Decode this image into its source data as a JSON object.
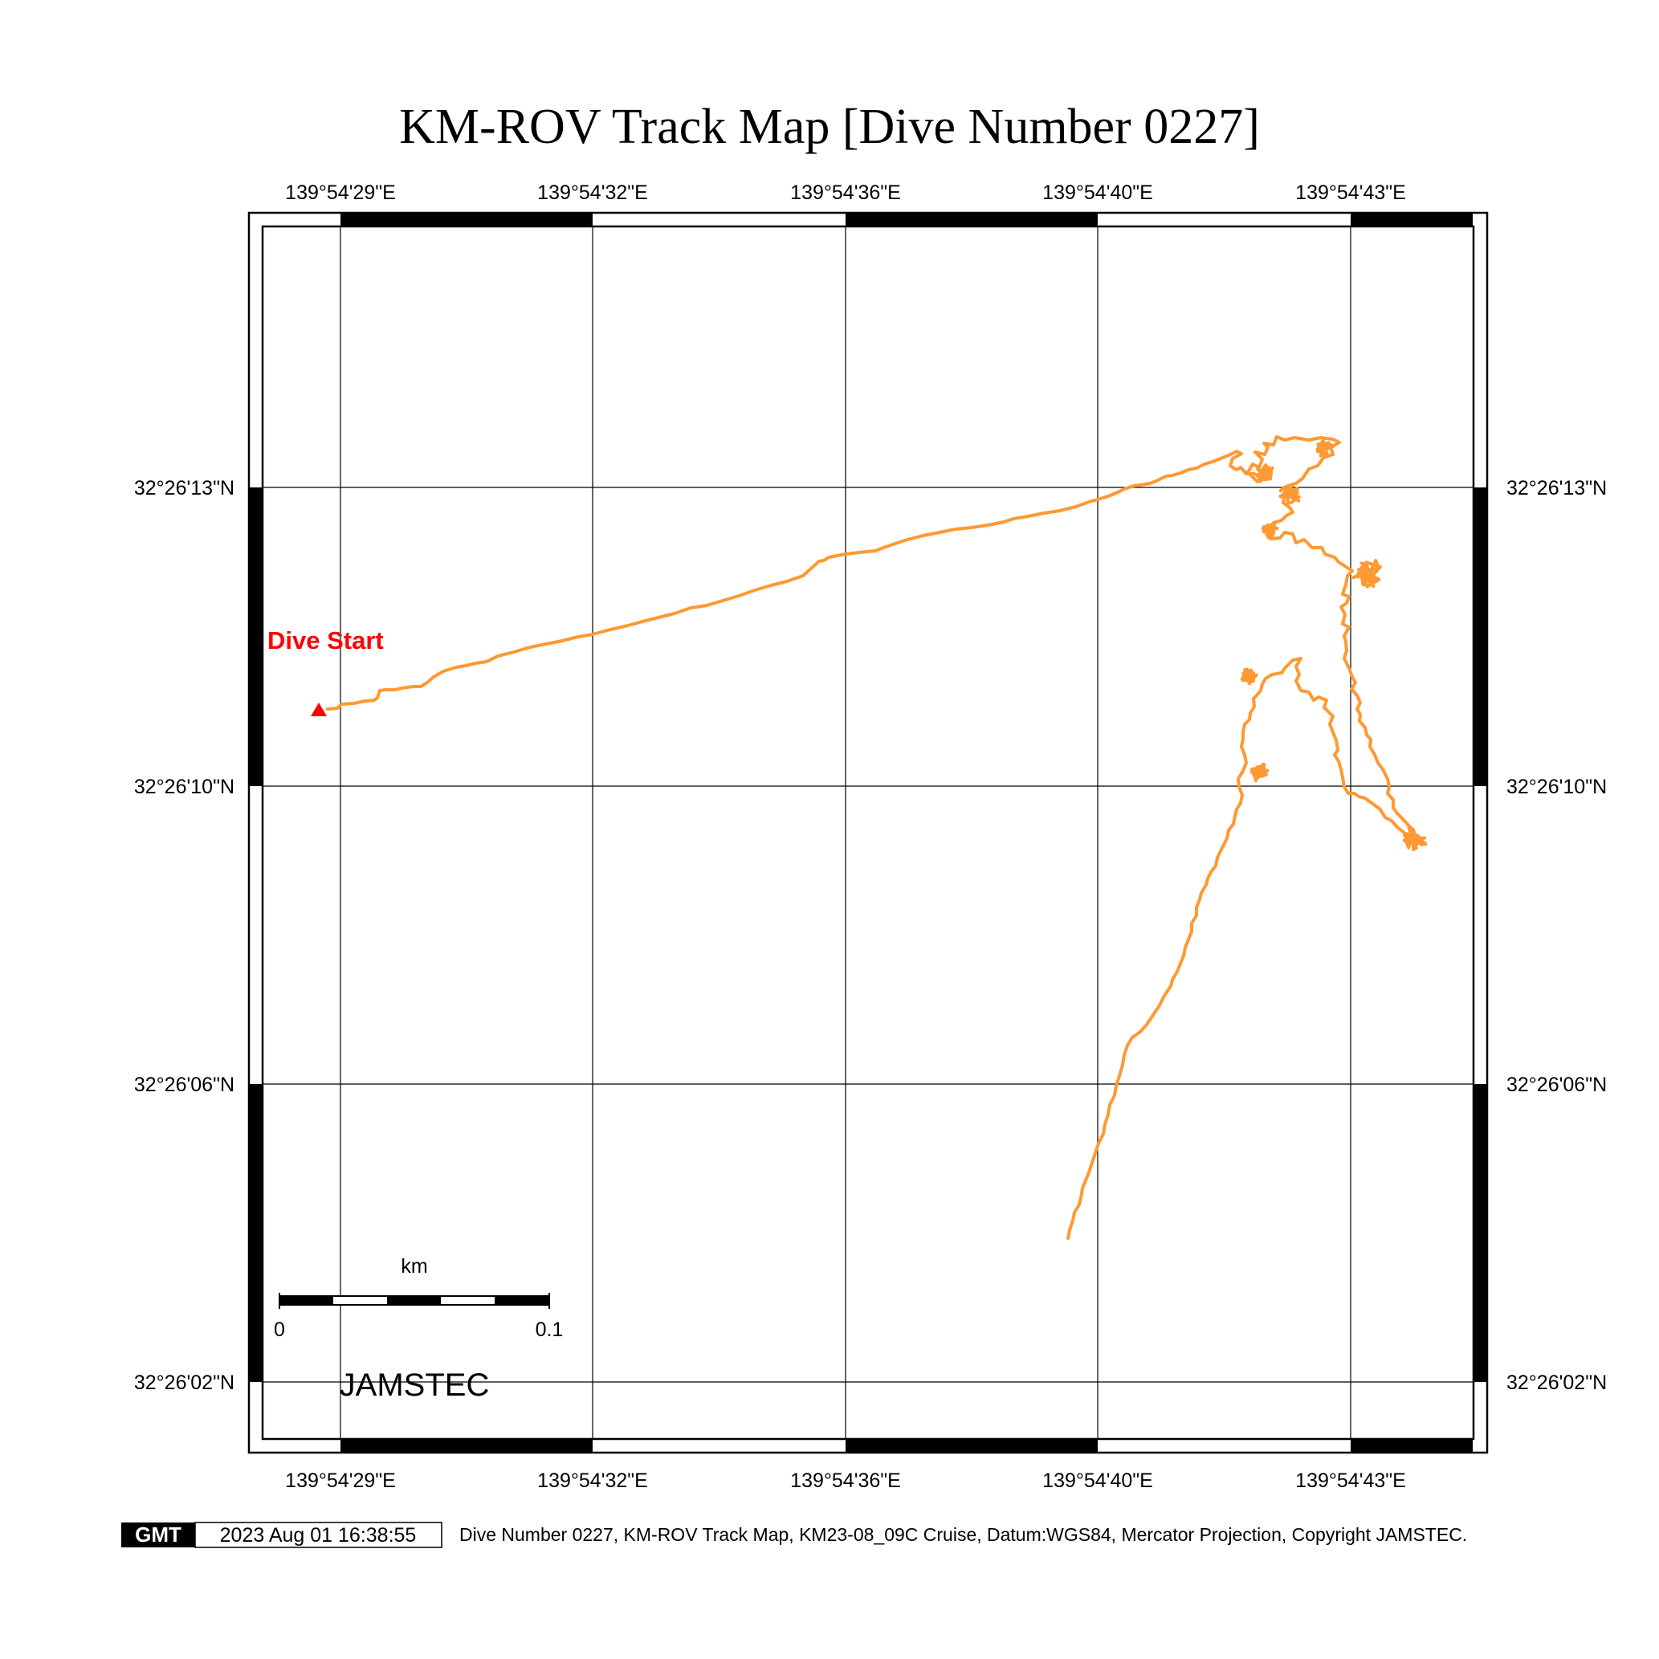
{
  "title": "KM-ROV Track Map [Dive Number 0227]",
  "map": {
    "lon_ticks": [
      "139°54'29\"E",
      "139°54'32\"E",
      "139°54'36\"E",
      "139°54'40\"E",
      "139°54'43\"E"
    ],
    "lat_ticks": [
      "32°26'13\"N",
      "32°26'10\"N",
      "32°26'06\"N",
      "32°26'02\"N"
    ],
    "start_label": "Dive Start",
    "start_color": "#ff0000",
    "track_color": "#ff9933",
    "grid": true,
    "projection": "Mercator"
  },
  "scale_bar": {
    "unit_label": "km",
    "min_label": "0",
    "max_label": "0.1"
  },
  "watermark": "JAMSTEC",
  "footer": {
    "logo": "GMT",
    "timestamp": "2023 Aug 01 16:38:55",
    "caption": "Dive Number 0227, KM-ROV Track Map, KM23-08_09C Cruise, Datum:WGS84, Mercator Projection, Copyright JAMSTEC."
  }
}
